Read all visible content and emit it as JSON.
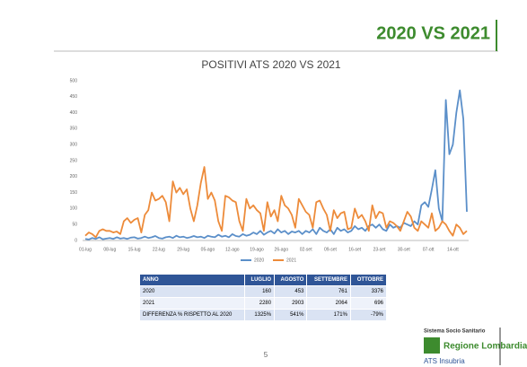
{
  "header": {
    "title": "2020 VS 2021"
  },
  "chart_data": {
    "type": "line",
    "title": "POSITIVI ATS 2020 VS 2021",
    "categories": [
      "01-lug",
      null,
      null,
      null,
      null,
      null,
      null,
      "08-lug",
      null,
      null,
      null,
      null,
      null,
      null,
      "15-lug",
      null,
      null,
      null,
      null,
      null,
      null,
      "22-lug",
      null,
      null,
      null,
      null,
      null,
      null,
      "29-lug",
      null,
      null,
      null,
      null,
      null,
      null,
      "05-ago",
      null,
      null,
      null,
      null,
      null,
      null,
      "12-ago",
      null,
      null,
      null,
      null,
      null,
      null,
      "19-ago",
      null,
      null,
      null,
      null,
      null,
      null,
      "26-ago",
      null,
      null,
      null,
      null,
      null,
      null,
      "02-set",
      null,
      null,
      null,
      null,
      null,
      null,
      "09-set",
      null,
      null,
      null,
      null,
      null,
      null,
      "16-set",
      null,
      null,
      null,
      null,
      null,
      null,
      "23-set",
      null,
      null,
      null,
      null,
      null,
      null,
      "30-set",
      null,
      null,
      null,
      null,
      null,
      null,
      "07-ott",
      null,
      null,
      null,
      null,
      null,
      null,
      "14-ott",
      null,
      null,
      null,
      null
    ],
    "series": [
      {
        "name": "2020",
        "color": "#5b8fc9",
        "values": [
          5,
          3,
          8,
          5,
          10,
          4,
          6,
          8,
          5,
          10,
          6,
          8,
          5,
          9,
          10,
          6,
          8,
          12,
          8,
          10,
          14,
          8,
          6,
          10,
          12,
          8,
          15,
          10,
          12,
          8,
          10,
          14,
          10,
          12,
          8,
          15,
          12,
          10,
          18,
          12,
          15,
          10,
          20,
          14,
          12,
          20,
          15,
          18,
          25,
          20,
          30,
          18,
          25,
          30,
          22,
          35,
          25,
          30,
          20,
          28,
          25,
          30,
          20,
          30,
          25,
          35,
          20,
          40,
          30,
          25,
          35,
          20,
          40,
          30,
          35,
          25,
          30,
          45,
          35,
          40,
          30,
          45,
          50,
          40,
          50,
          35,
          30,
          50,
          40,
          45,
          40,
          55,
          50,
          45,
          60,
          50,
          110,
          120,
          105,
          160,
          220,
          100,
          60,
          440,
          270,
          300,
          400,
          470,
          380,
          90
        ]
      },
      {
        "name": "2021",
        "color": "#ed8b3a",
        "values": [
          15,
          25,
          20,
          10,
          30,
          35,
          30,
          30,
          25,
          28,
          20,
          60,
          70,
          55,
          65,
          70,
          25,
          80,
          95,
          150,
          125,
          130,
          140,
          120,
          60,
          185,
          150,
          165,
          145,
          160,
          100,
          60,
          110,
          180,
          230,
          130,
          150,
          125,
          60,
          30,
          140,
          135,
          125,
          120,
          60,
          30,
          130,
          100,
          110,
          95,
          85,
          30,
          120,
          75,
          95,
          60,
          140,
          110,
          100,
          80,
          40,
          130,
          110,
          90,
          80,
          40,
          120,
          125,
          100,
          80,
          30,
          95,
          70,
          85,
          90,
          35,
          40,
          100,
          70,
          80,
          60,
          30,
          110,
          70,
          90,
          85,
          40,
          60,
          55,
          45,
          30,
          60,
          90,
          75,
          40,
          30,
          60,
          50,
          40,
          85,
          30,
          40,
          60,
          50,
          30,
          15,
          50,
          40,
          20,
          30
        ]
      }
    ],
    "ylim": [
      0,
      500
    ],
    "yticks": [
      0,
      50,
      100,
      150,
      200,
      250,
      300,
      350,
      400,
      450,
      500
    ],
    "grid": false,
    "legend": "bottom"
  },
  "table": {
    "header": [
      "ANNO",
      "LUGLIO",
      "AGOSTO",
      "SETTEMBRE",
      "OTTOBRE"
    ],
    "rows": [
      [
        "2020",
        "160",
        "453",
        "761",
        "3376"
      ],
      [
        "2021",
        "2280",
        "2903",
        "2064",
        "696"
      ],
      [
        "DIFFERENZA % RISPETTO AL 2020",
        "1325%",
        "541%",
        "171%",
        "-79%"
      ]
    ]
  },
  "footer": {
    "page": "5",
    "logo_top": "Sistema Socio Sanitario",
    "logo_main": "Regione Lombardia",
    "logo_sub": "ATS Insubria"
  }
}
